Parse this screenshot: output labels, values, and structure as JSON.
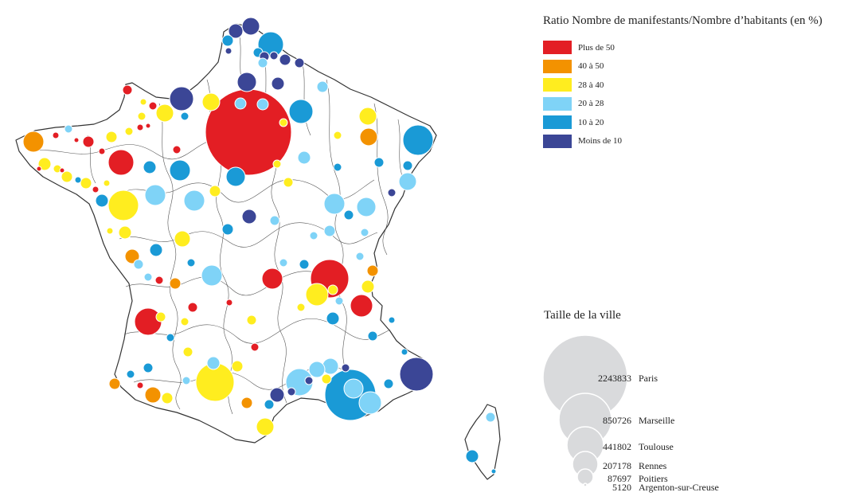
{
  "legend": {
    "title": "Ratio Nombre de manifestants/Nombre d’habitants (en %)",
    "items": [
      {
        "label": "Plus de 50",
        "color": "#e31e24"
      },
      {
        "label": "40 à 50",
        "color": "#f39200"
      },
      {
        "label": "28 à 40",
        "color": "#ffed1f"
      },
      {
        "label": "20 à 28",
        "color": "#7fd3f7"
      },
      {
        "label": "10 à 20",
        "color": "#1a9ad6"
      },
      {
        "label": "Moins de 10",
        "color": "#3b4696"
      }
    ]
  },
  "size_legend": {
    "title": "Taille de la ville",
    "circle_color": "#d9dadc",
    "entries": [
      {
        "value": "2243833",
        "city": "Paris"
      },
      {
        "value": "850726",
        "city": "Marseille"
      },
      {
        "value": "441802",
        "city": "Toulouse"
      },
      {
        "value": "207178",
        "city": "Rennes"
      },
      {
        "value": "87697",
        "city": "Poitiers"
      },
      {
        "value": "5120",
        "city": "Argenton-sur-Creuse"
      }
    ]
  }
}
